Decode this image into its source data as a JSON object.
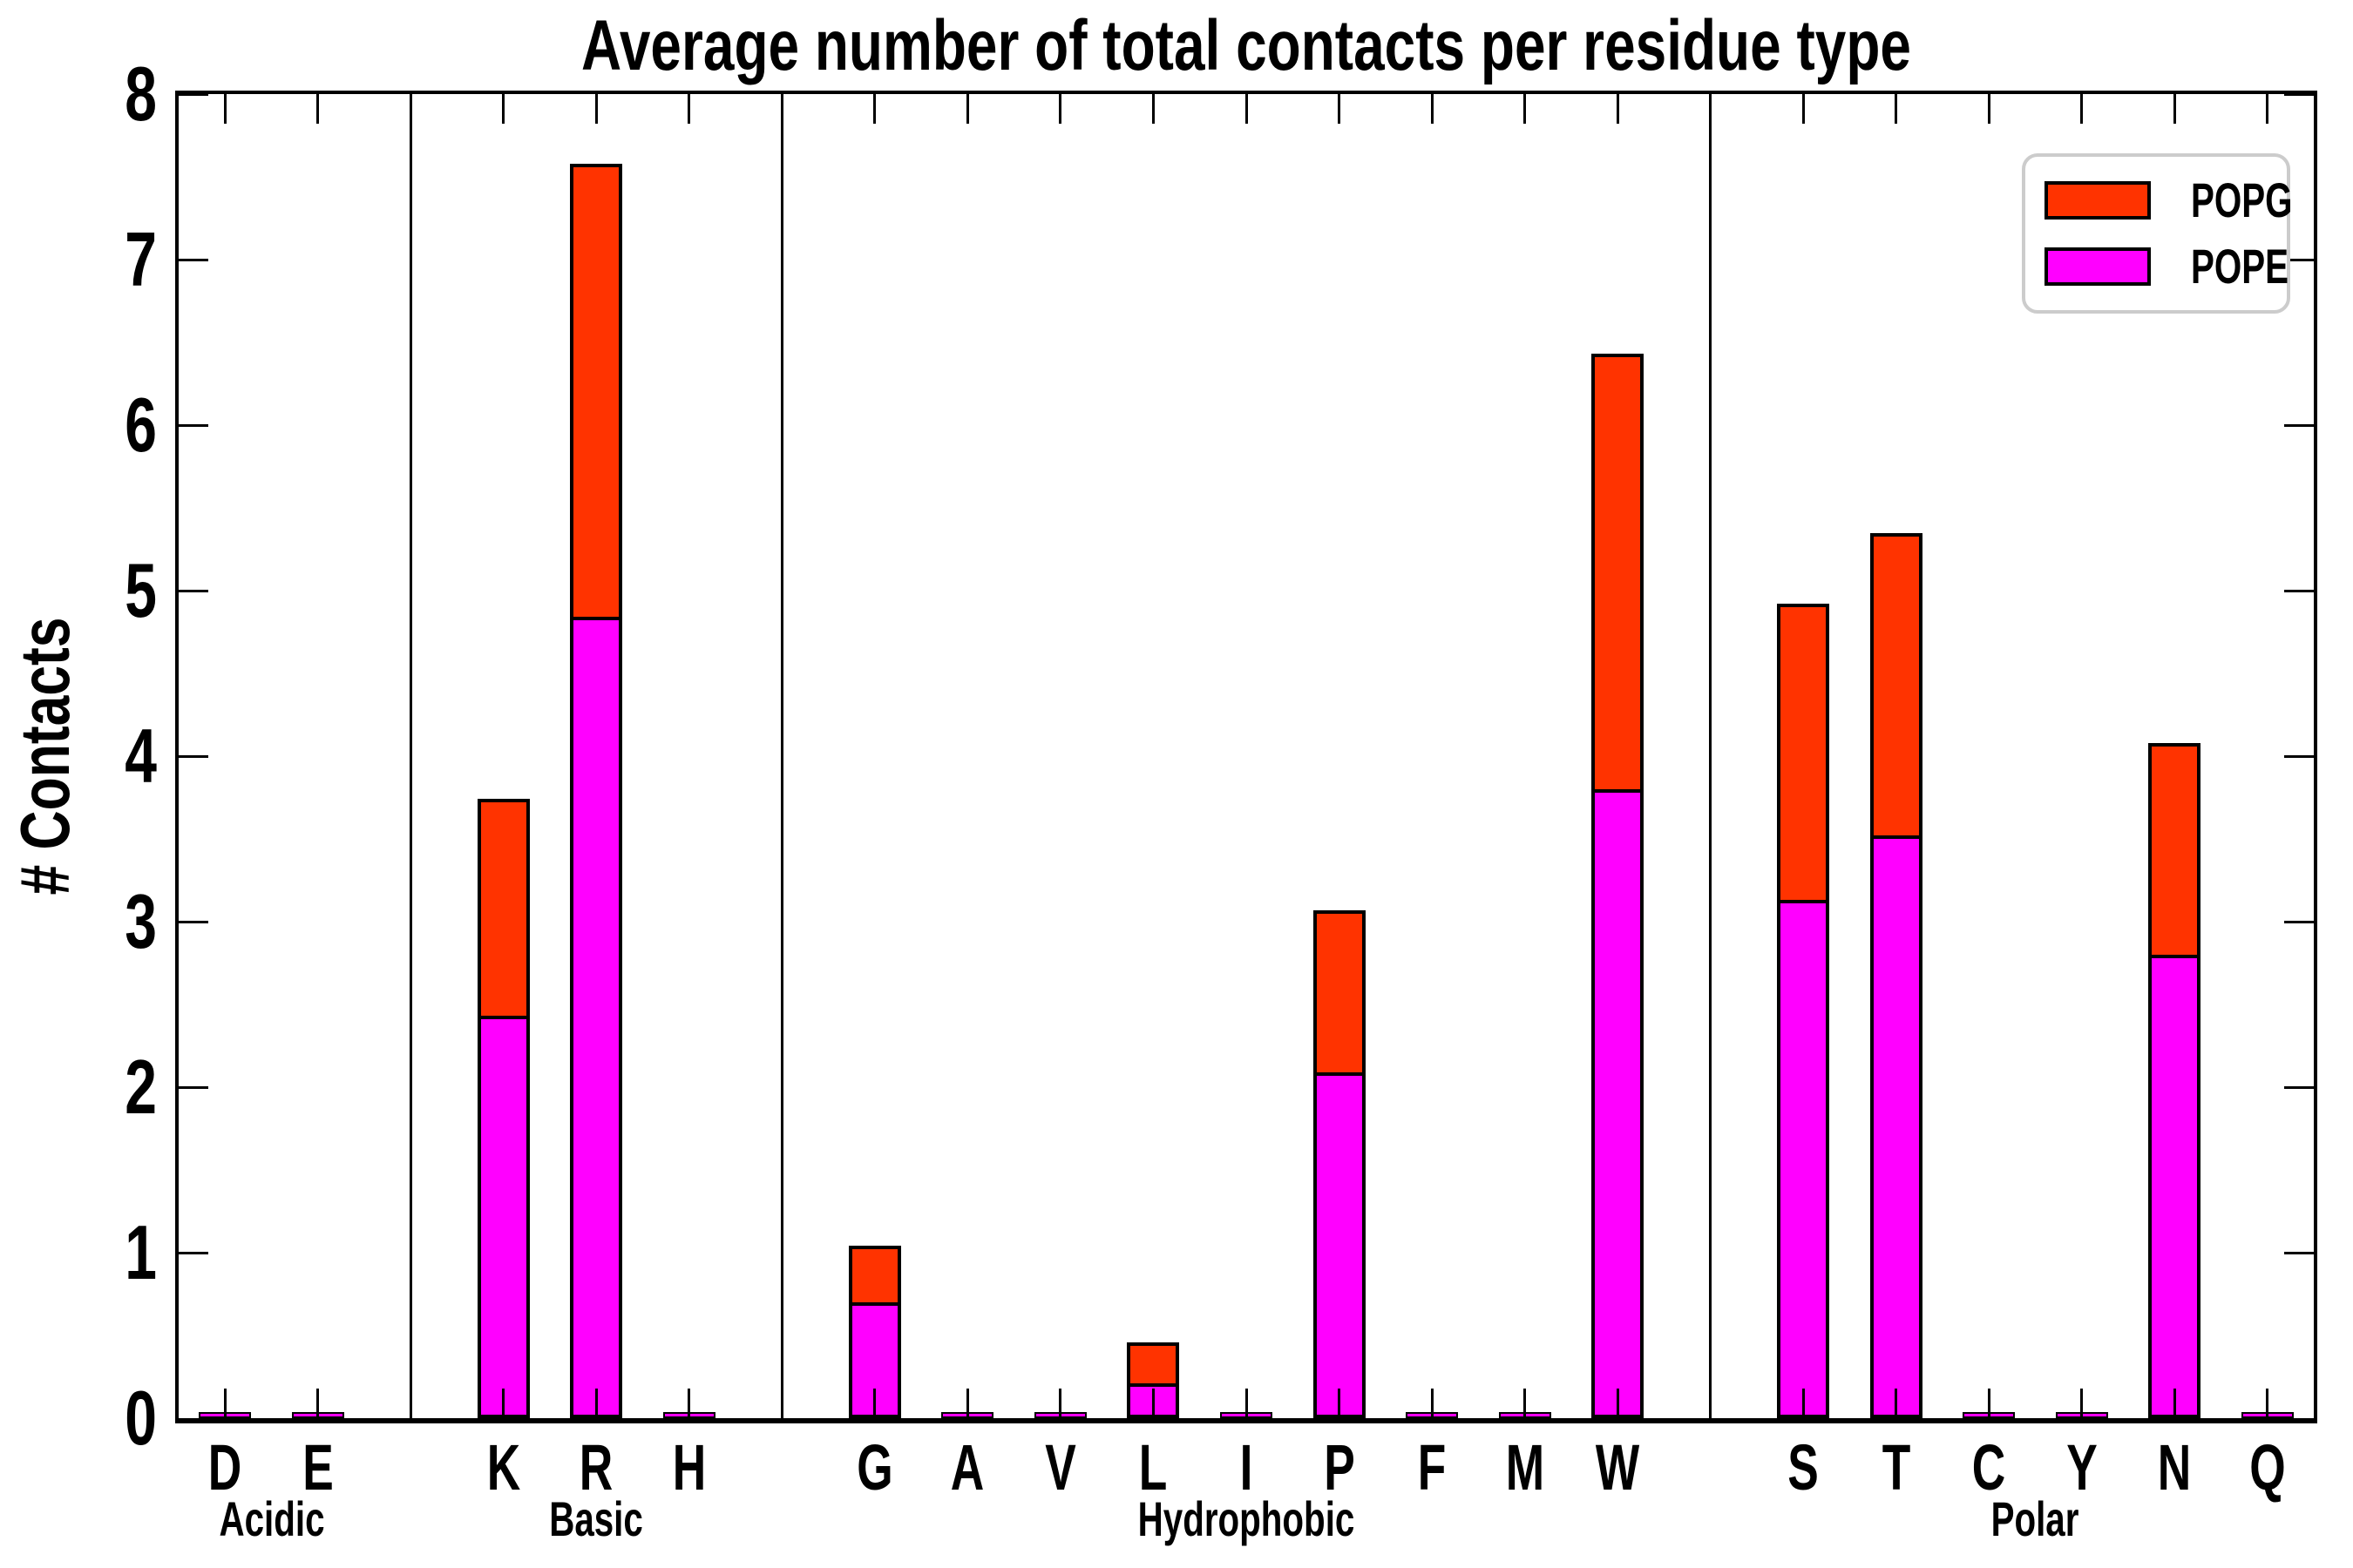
{
  "title": "Average number of total contacts per residue type",
  "ylabel": "# Contacts",
  "legend": {
    "entries": [
      "POPG",
      "POPE"
    ]
  },
  "chart_data": {
    "type": "bar",
    "stacked": true,
    "title": "Average number of total contacts per residue type",
    "xlabel": "",
    "ylabel": "# Contacts",
    "ylim": [
      0,
      8
    ],
    "yticks": [
      0,
      1,
      2,
      3,
      4,
      5,
      6,
      7,
      8
    ],
    "grid": false,
    "legend_position": "upper right",
    "categories": [
      "D",
      "E",
      "K",
      "R",
      "H",
      "G",
      "A",
      "V",
      "L",
      "I",
      "P",
      "F",
      "M",
      "W",
      "S",
      "T",
      "C",
      "Y",
      "N",
      "Q"
    ],
    "groups": [
      {
        "label": "Acidic",
        "members": [
          "D",
          "E"
        ]
      },
      {
        "label": "Basic",
        "members": [
          "K",
          "R",
          "H"
        ]
      },
      {
        "label": "Hydrophobic",
        "members": [
          "G",
          "A",
          "V",
          "L",
          "I",
          "P",
          "F",
          "M",
          "W"
        ]
      },
      {
        "label": "Polar",
        "members": [
          "S",
          "T",
          "C",
          "Y",
          "N",
          "Q"
        ]
      }
    ],
    "series": [
      {
        "name": "POPE",
        "color": "#FF00FF",
        "values": [
          0.01,
          0.01,
          2.43,
          4.84,
          0.01,
          0.7,
          0.01,
          0.01,
          0.21,
          0.01,
          2.09,
          0.01,
          0.01,
          3.8,
          3.13,
          3.52,
          0.01,
          0.01,
          2.8,
          0.01
        ]
      },
      {
        "name": "POPG",
        "color": "#FF3300",
        "values": [
          0.01,
          0.01,
          1.31,
          2.74,
          0.01,
          0.34,
          0.01,
          0.01,
          0.25,
          0.01,
          0.98,
          0.01,
          0.01,
          2.63,
          1.79,
          1.83,
          0.01,
          0.01,
          1.28,
          0.01
        ]
      }
    ],
    "totals": [
      0.02,
      0.02,
      3.74,
      7.58,
      0.02,
      1.04,
      0.02,
      0.02,
      0.46,
      0.02,
      3.07,
      0.02,
      0.02,
      6.43,
      4.92,
      5.35,
      0.02,
      0.02,
      4.08,
      0.02
    ],
    "bar_edge_color": "#000000"
  },
  "colors": {
    "popg": "#FF3300",
    "pope": "#FF00FF",
    "legend_border": "#CCCCCC",
    "axis": "#000000"
  }
}
